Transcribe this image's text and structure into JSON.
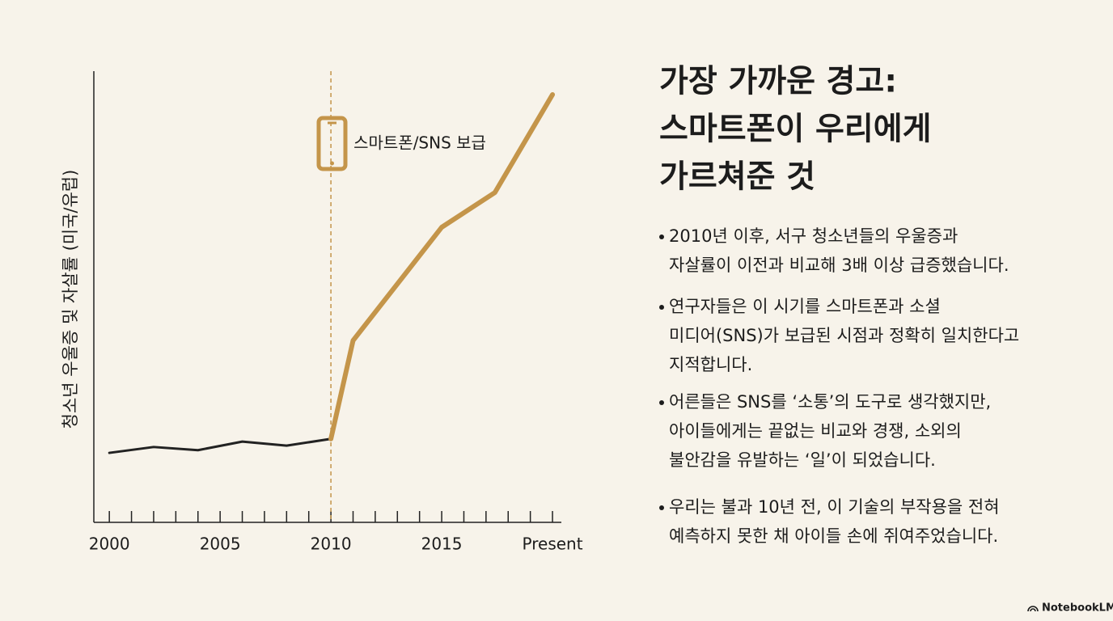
{
  "chart_data": {
    "type": "line",
    "y_label": "청소년 우울증 및 자살률 (미국/유럽)",
    "x": [
      2000,
      2002,
      2004,
      2006,
      2008,
      2010,
      2011,
      2015,
      2017.4,
      2020
    ],
    "series": [
      {
        "color": "#222222",
        "values": [
          15.4,
          16.7,
          16.0,
          17.9,
          17.0,
          18.5,
          null,
          null,
          null,
          null
        ]
      },
      {
        "color": "#c4954a",
        "values": [
          null,
          null,
          null,
          null,
          null,
          18.5,
          40.3,
          65.4,
          73.1,
          94.8
        ]
      }
    ],
    "xlim": [
      1999.3,
      2020.4
    ],
    "ylim": [
      0,
      100
    ],
    "xticks": [
      2000,
      2005,
      2010,
      2015,
      {
        "value": 2020,
        "label": "Present"
      }
    ],
    "xminor_ticks": [
      2000,
      2001,
      2002,
      2003,
      2004,
      2005,
      2006,
      2007,
      2008,
      2009,
      2010,
      2011,
      2012,
      2013,
      2014,
      2015,
      2016,
      2017,
      2018,
      2019,
      2020
    ],
    "annotation": {
      "x": 2010,
      "text": "스마트폰/SNS 보급",
      "color": "#c4954a"
    }
  },
  "title": [
    "가장 가까운 경고:",
    "스마트폰이 우리에게",
    "가르쳐준 것"
  ],
  "bullets": [
    [
      "2010년 이후, 서구 청소년들의 우울증과",
      "자살률이 이전과 비교해 3배 이상 급증했습니다."
    ],
    [
      "연구자들은 이 시기를 스마트폰과 소셜",
      "미디어(SNS)가 보급된 시점과 정확히 일치한다고",
      "지적합니다."
    ],
    [
      "어른들은 SNS를 ‘소통’의 도구로 생각했지만,",
      "아이들에게는 끝없는 비교와 경쟁, 소외의",
      "불안감을 유발하는 ‘일’이 되었습니다."
    ],
    [
      "우리는 불과 10년 전, 이 기술의 부작용을 전혀",
      "예측하지 못한 채 아이들 손에 쥐여주었습니다."
    ]
  ],
  "brand": "NotebookLM"
}
